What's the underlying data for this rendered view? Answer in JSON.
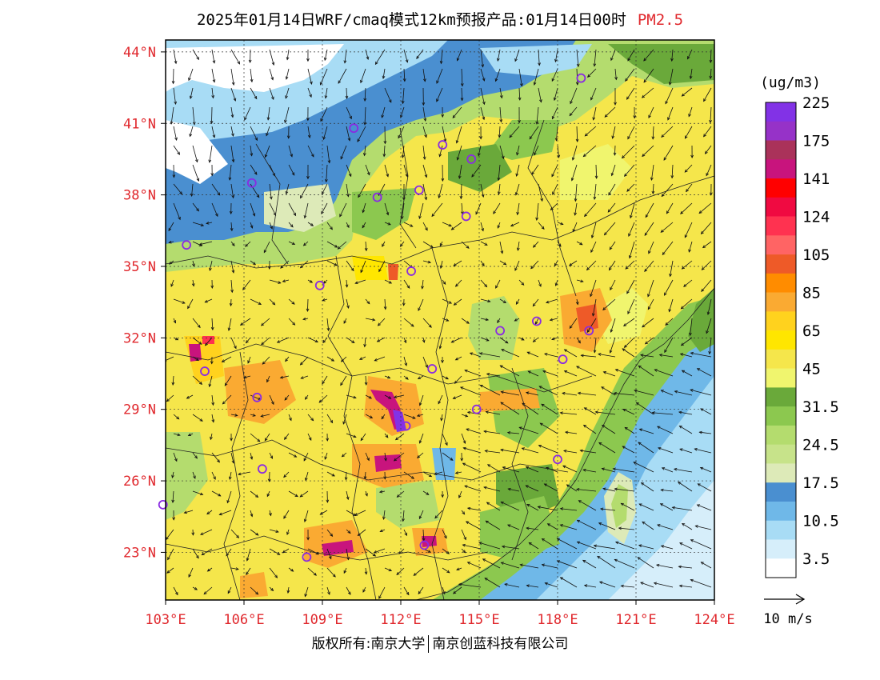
{
  "title": {
    "main": "2025年01月14日WRF/cmaq模式12km预报产品:01月14日00时",
    "pollutant": "PM2.5"
  },
  "map": {
    "lat_labels": [
      "44°N",
      "41°N",
      "38°N",
      "35°N",
      "32°N",
      "29°N",
      "26°N",
      "23°N"
    ],
    "lon_labels": [
      "103°E",
      "106°E",
      "109°E",
      "112°E",
      "115°E",
      "118°E",
      "121°E",
      "124°E"
    ],
    "lat_values": [
      44,
      41,
      38,
      35,
      32,
      29,
      26,
      23
    ],
    "lon_values": [
      103,
      106,
      109,
      112,
      115,
      118,
      121,
      124
    ],
    "extent": {
      "lon_min": 103,
      "lon_max": 124,
      "lat_min": 21,
      "lat_max": 44.5
    },
    "cities": [
      {
        "lon": 118.9,
        "lat": 42.9
      },
      {
        "lon": 110.2,
        "lat": 40.8
      },
      {
        "lon": 113.6,
        "lat": 40.1
      },
      {
        "lon": 114.7,
        "lat": 39.5
      },
      {
        "lon": 106.3,
        "lat": 38.5
      },
      {
        "lon": 111.1,
        "lat": 37.9
      },
      {
        "lon": 112.7,
        "lat": 38.2
      },
      {
        "lon": 114.5,
        "lat": 37.1
      },
      {
        "lon": 103.8,
        "lat": 35.9
      },
      {
        "lon": 108.9,
        "lat": 34.2
      },
      {
        "lon": 112.4,
        "lat": 34.8
      },
      {
        "lon": 115.8,
        "lat": 32.3
      },
      {
        "lon": 117.2,
        "lat": 32.7
      },
      {
        "lon": 119.2,
        "lat": 32.3
      },
      {
        "lon": 104.5,
        "lat": 30.6
      },
      {
        "lon": 106.5,
        "lat": 29.5
      },
      {
        "lon": 113.2,
        "lat": 30.7
      },
      {
        "lon": 118.2,
        "lat": 31.1
      },
      {
        "lon": 112.2,
        "lat": 28.3
      },
      {
        "lon": 114.9,
        "lat": 29.0
      },
      {
        "lon": 106.7,
        "lat": 26.5
      },
      {
        "lon": 118.0,
        "lat": 26.9
      },
      {
        "lon": 102.9,
        "lat": 25.0
      },
      {
        "lon": 108.4,
        "lat": 22.8
      },
      {
        "lon": 112.9,
        "lat": 23.3
      }
    ]
  },
  "colorbar": {
    "unit": "(ug/m3)",
    "colors": [
      "#ffffff",
      "#d6eefa",
      "#a8dcf5",
      "#6fb8e8",
      "#4a8fd0",
      "#ddeab8",
      "#c7e38a",
      "#b4dc6e",
      "#8cc84f",
      "#6aa93a",
      "#f0f56e",
      "#f5e64b",
      "#ffe600",
      "#ffd21e",
      "#faaa32",
      "#ff8c00",
      "#ee5a28",
      "#ff6464",
      "#ff3250",
      "#f00a41",
      "#ff0000",
      "#c8147d",
      "#aa325a",
      "#9632c8",
      "#8232e6"
    ],
    "labels": [
      "3.5",
      "10.5",
      "17.5",
      "24.5",
      "31.5",
      "45",
      "65",
      "85",
      "105",
      "124",
      "141",
      "175",
      "225"
    ]
  },
  "wind_reference": {
    "label": "10 m/s"
  },
  "copyright": {
    "left": "版权所有:南京大学",
    "right": "南京创蓝科技有限公司"
  }
}
